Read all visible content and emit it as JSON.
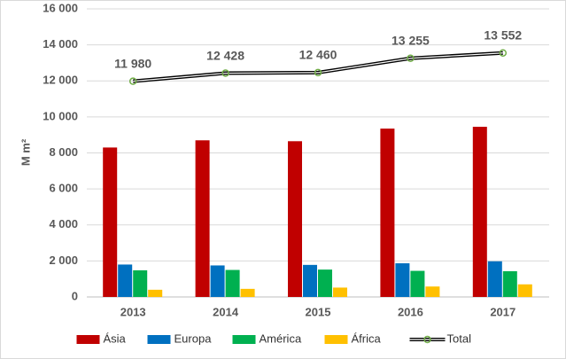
{
  "chart_data": {
    "type": "bar",
    "categories": [
      "2013",
      "2014",
      "2015",
      "2016",
      "2017"
    ],
    "y_label": "M m²",
    "series": [
      {
        "name": "Ásia",
        "color": "#c00000",
        "values": [
          8300,
          8700,
          8650,
          9350,
          9450
        ]
      },
      {
        "name": "Europa",
        "color": "#0070c0",
        "values": [
          1800,
          1750,
          1780,
          1870,
          1980
        ]
      },
      {
        "name": "América",
        "color": "#00b050",
        "values": [
          1480,
          1500,
          1520,
          1450,
          1430
        ]
      },
      {
        "name": "África",
        "color": "#ffc000",
        "values": [
          400,
          450,
          520,
          580,
          700
        ]
      },
      {
        "name": "Total",
        "type": "line",
        "color": "#000000",
        "marker_color": "#70ad47",
        "values": [
          11980,
          12428,
          12460,
          13255,
          13552
        ],
        "value_labels": [
          "11 980",
          "12 428",
          "12 460",
          "13 255",
          "13 552"
        ]
      }
    ],
    "ylim": [
      0,
      16000
    ],
    "yticks": [
      0,
      {
        "value": 2000,
        "label": "2 000"
      },
      {
        "value": 4000,
        "label": "4 000"
      },
      {
        "value": 6000,
        "label": "6 000"
      },
      {
        "value": 8000,
        "label": "8 000"
      },
      {
        "value": 10000,
        "label": "10 000"
      },
      {
        "value": 12000,
        "label": "12 000"
      },
      {
        "value": 14000,
        "label": "14 000"
      },
      {
        "value": 16000,
        "label": "16 000"
      }
    ],
    "grid": true,
    "legend": "bottom"
  }
}
